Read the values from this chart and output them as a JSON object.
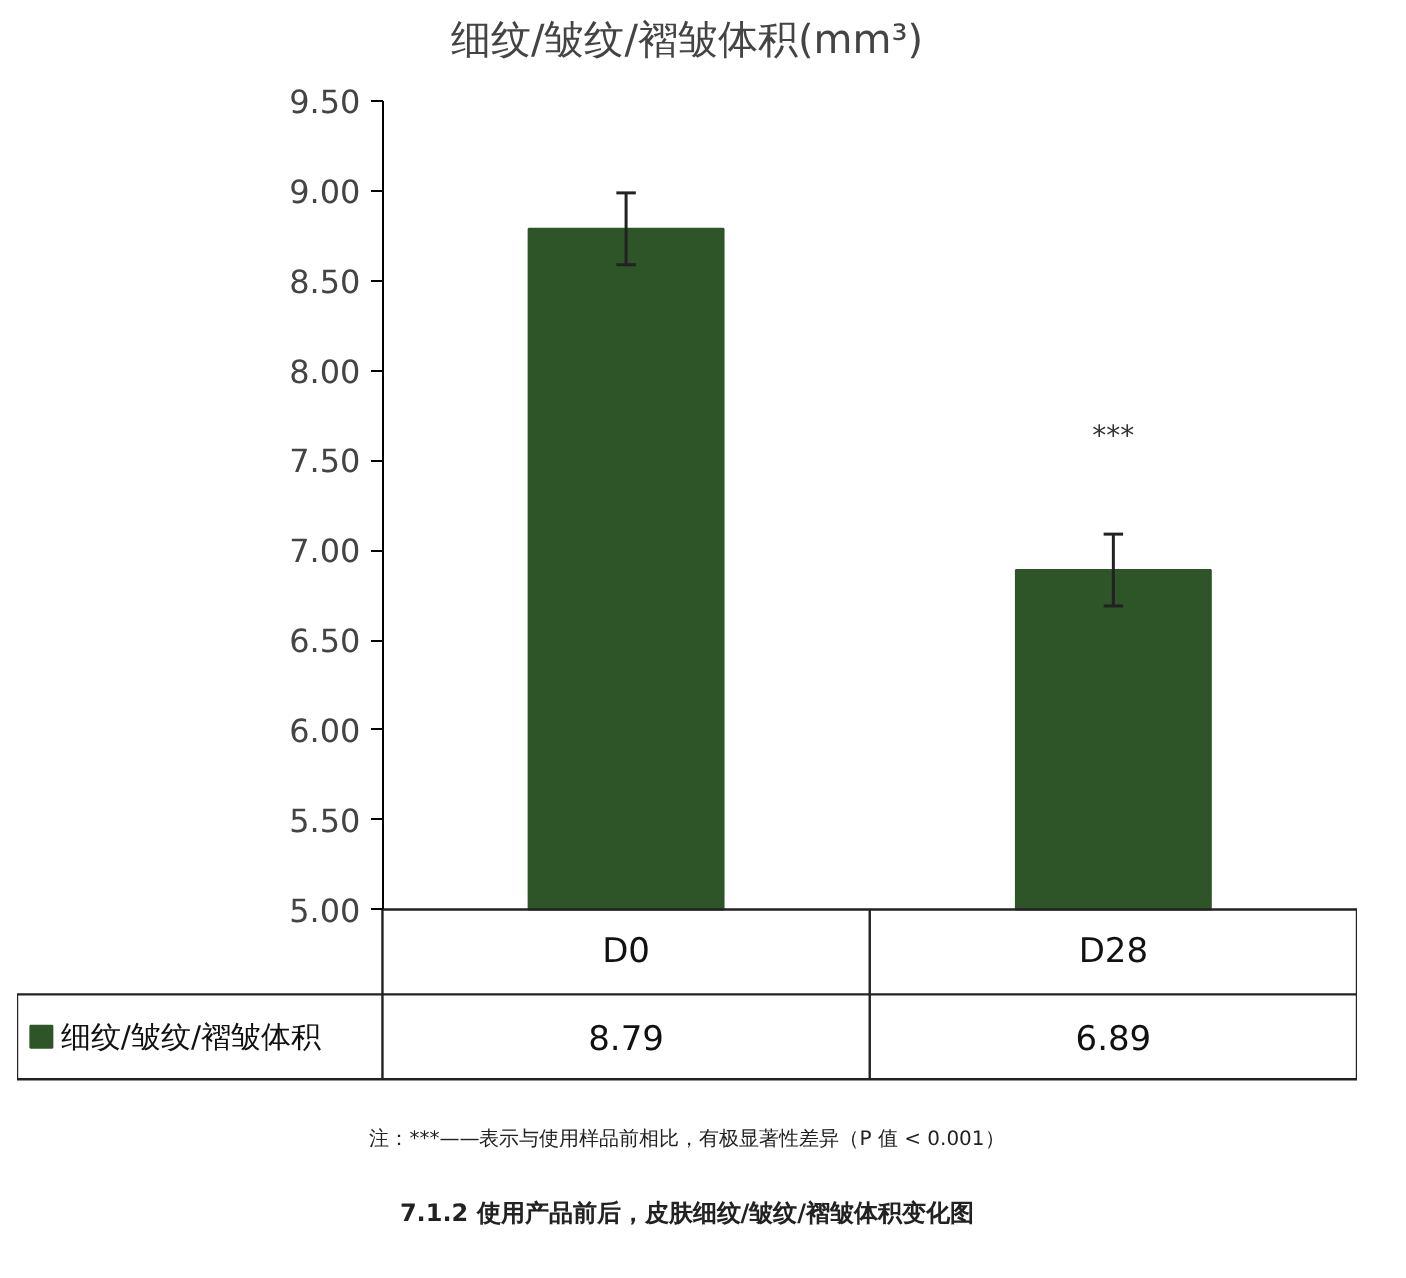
{
  "chart_data": {
    "type": "bar",
    "title": "细纹/皱纹/褶皱体积(mm³)",
    "categories": [
      "D0",
      "D28"
    ],
    "series": [
      {
        "name": "细纹/皱纹/褶皱体积",
        "color": "#2e5528",
        "values": [
          8.79,
          6.89
        ],
        "errors": [
          0.2,
          0.2
        ]
      }
    ],
    "ylim": [
      5.0,
      9.5
    ],
    "yticks": [
      {
        "value": 5.0,
        "label": "5.00"
      },
      {
        "value": 5.5,
        "label": "5.50"
      },
      {
        "value": 6.0,
        "label": "6.00"
      },
      {
        "value": 6.5,
        "label": "6.50"
      },
      {
        "value": 7.0,
        "label": "7.00"
      },
      {
        "value": 7.5,
        "label": "7.50"
      },
      {
        "value": 8.0,
        "label": "8.00"
      },
      {
        "value": 8.5,
        "label": "8.50"
      },
      {
        "value": 9.0,
        "label": "9.00"
      },
      {
        "value": 9.5,
        "label": "9.50"
      }
    ],
    "data_labels": true,
    "legend": "bottom",
    "annotations": [
      "***",
      "注：***——表示与使用样品前相比，有极显著性差异（P 值 < 0.001）",
      "7.1.2 使用产品前后，皮肤细纹/皱纹/褶皱体积变化图"
    ]
  }
}
